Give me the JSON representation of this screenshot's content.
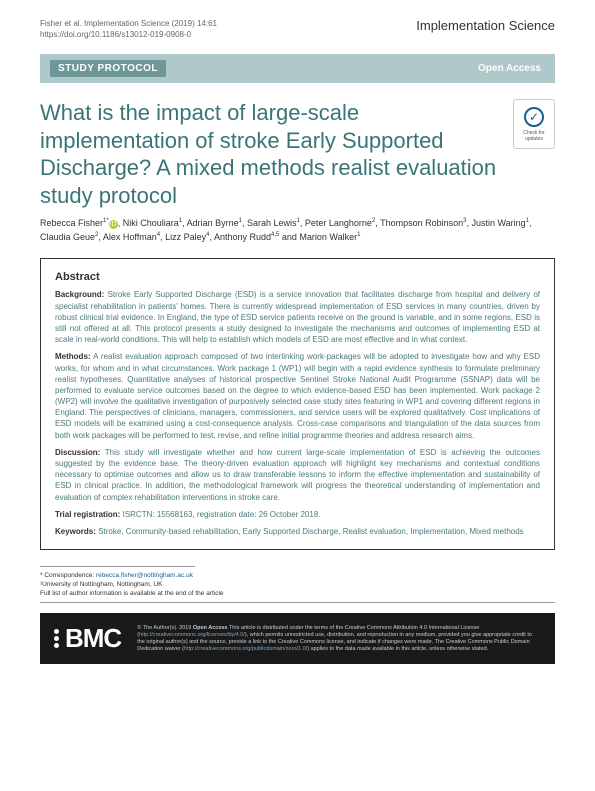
{
  "header": {
    "citation": "Fisher et al. Implementation Science     (2019) 14:61",
    "doi": "https://doi.org/10.1186/s13012-019-0908-0",
    "journal": "Implementation Science"
  },
  "banner": {
    "label": "STUDY PROTOCOL",
    "access": "Open Access"
  },
  "title": "What is the impact of large-scale implementation of stroke Early Supported Discharge? A mixed methods realist evaluation study protocol",
  "check_badge": {
    "icon": "✓",
    "text": "Check for updates"
  },
  "authors_html": "Rebecca Fisher<sup>1*</sup><span class='orcid'>iD</span>, Niki Chouliara<sup>1</sup>, Adrian Byrne<sup>1</sup>, Sarah Lewis<sup>1</sup>, Peter Langhorne<sup>2</sup>, Thompson Robinson<sup>3</sup>, Justin Waring<sup>1</sup>, Claudia Geue<sup>2</sup>, Alex Hoffman<sup>4</sup>, Lizz Paley<sup>4</sup>, Anthony Rudd<sup>4,5</sup> and Marion Walker<sup>1</sup>",
  "abstract": {
    "title": "Abstract",
    "background_label": "Background:",
    "background": "Stroke Early Supported Discharge (ESD) is a service innovation that facilitates discharge from hospital and delivery of specialist rehabilitation in patients' homes. There is currently widespread implementation of ESD services in many countries, driven by robust clinical trial evidence. In England, the type of ESD service patients receive on the ground is variable, and in some regions, ESD is still not offered at all. This protocol presents a study designed to investigate the mechanisms and outcomes of implementing ESD at scale in real-world conditions. This will help to establish which models of ESD are most effective and in what context.",
    "methods_label": "Methods:",
    "methods": "A realist evaluation approach composed of two interlinking work-packages will be adopted to investigate how and why ESD works, for whom and in what circumstances. Work package 1 (WP1) will begin with a rapid evidence synthesis to formulate preliminary realist hypotheses. Quantitative analyses of historical prospective Sentinel Stroke National Audit Programme (SSNAP) data will be performed to evaluate service outcomes based on the degree to which evidence-based ESD has been implemented. Work package 2 (WP2) will involve the qualitative investigation of purposively selected case study sites featuring in WP1 and covering different regions in England. The perspectives of clinicians, managers, commissioners, and service users will be explored qualitatively. Cost implications of ESD models will be examined using a cost-consequence analysis. Cross-case comparisons and triangulation of the data sources from both work packages will be performed to test, revise, and refine initial programme theories and address research aims.",
    "discussion_label": "Discussion:",
    "discussion": "This study will investigate whether and how current large-scale implementation of ESD is achieving the outcomes suggested by the evidence base. The theory-driven evaluation approach will highlight key mechanisms and contextual conditions necessary to optimise outcomes and allow us to draw transferable lessons to inform the effective implementation and sustainability of ESD in clinical practice. In addition, the methodological framework will progress the theoretical understanding of implementation and evaluation of complex rehabilitation interventions in stroke care.",
    "trial_label": "Trial registration:",
    "trial": "ISRCTN: 15568163, registration date: 26 October 2018.",
    "keywords_label": "Keywords:",
    "keywords": "Stroke, Community-based rehabilitation, Early Supported Discharge, Realist evaluation, Implementation, Mixed methods"
  },
  "correspondence": {
    "line1": "* Correspondence: rebecca.fisher@nottingham.ac.uk",
    "line2": "¹University of Nottingham, Nottingham, UK",
    "line3": "Full list of author information is available at the end of the article"
  },
  "footer": {
    "logo": "BMC",
    "license": "© The Author(s). 2019 <strong>Open Access</strong> This article is distributed under the terms of the Creative Commons Attribution 4.0 International License (<a href='#'>http://creativecommons.org/licenses/by/4.0/</a>), which permits unrestricted use, distribution, and reproduction in any medium, provided you give appropriate credit to the original author(s) and the source, provide a link to the Creative Commons license, and indicate if changes were made. The Creative Commons Public Domain Dedication waiver (<a href='#'>http://creativecommons.org/publicdomain/zero/1.0/</a>) applies to the data made available in this article, unless otherwise stated."
  },
  "colors": {
    "banner_bg": "#afc8c9",
    "banner_label_bg": "#6d9798",
    "title_color": "#3a7576",
    "abstract_text": "#4a7a7b",
    "footer_bg": "#1a1a1a",
    "link_color": "#1a5f8e"
  }
}
